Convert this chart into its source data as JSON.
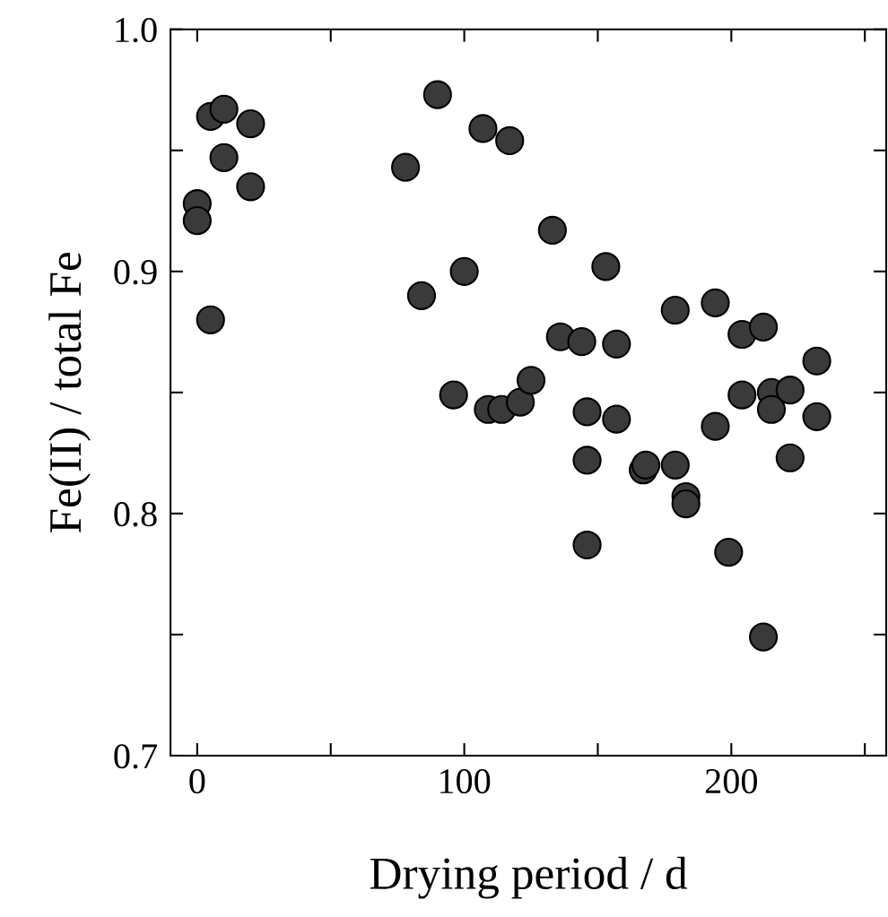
{
  "chart_data": {
    "type": "scatter",
    "xlabel": "Drying period / d",
    "ylabel": "Fe(II) / total Fe",
    "marker": "circle",
    "color": "#3a3a3a",
    "x": [
      0,
      0,
      5,
      5,
      10,
      10,
      20,
      20,
      78,
      84,
      90,
      96,
      100,
      107,
      109,
      114,
      117,
      121,
      125,
      133,
      136,
      144,
      146,
      146,
      146,
      153,
      157,
      157,
      167,
      168,
      179,
      179,
      183,
      183,
      194,
      194,
      199,
      204,
      204,
      212,
      212,
      215,
      215,
      222,
      222,
      232,
      232
    ],
    "values": [
      0.928,
      0.921,
      0.88,
      0.964,
      0.967,
      0.947,
      0.961,
      0.935,
      0.943,
      0.89,
      0.973,
      0.849,
      0.9,
      0.959,
      0.843,
      0.843,
      0.954,
      0.846,
      0.855,
      0.917,
      0.873,
      0.871,
      0.842,
      0.822,
      0.787,
      0.902,
      0.87,
      0.839,
      0.818,
      0.82,
      0.82,
      0.884,
      0.807,
      0.804,
      0.887,
      0.836,
      0.784,
      0.874,
      0.849,
      0.877,
      0.749,
      0.85,
      0.843,
      0.851,
      0.823,
      0.863,
      0.84
    ],
    "xlim": [
      -10,
      258
    ],
    "ylim": [
      0.7,
      1.0
    ],
    "xticks": [
      0,
      {
        "value": 50,
        "label": null
      },
      100,
      {
        "value": 150,
        "label": null
      },
      200,
      {
        "value": 250,
        "label": null
      }
    ],
    "yticks": [
      {
        "value": 0.7,
        "label": "0.7"
      },
      {
        "value": 0.75,
        "label": null
      },
      {
        "value": 0.8,
        "label": "0.8"
      },
      {
        "value": 0.85,
        "label": null
      },
      {
        "value": 0.9,
        "label": "0.9"
      },
      {
        "value": 0.95,
        "label": null
      },
      {
        "value": 1.0,
        "label": "1.0"
      }
    ],
    "grid": false
  }
}
